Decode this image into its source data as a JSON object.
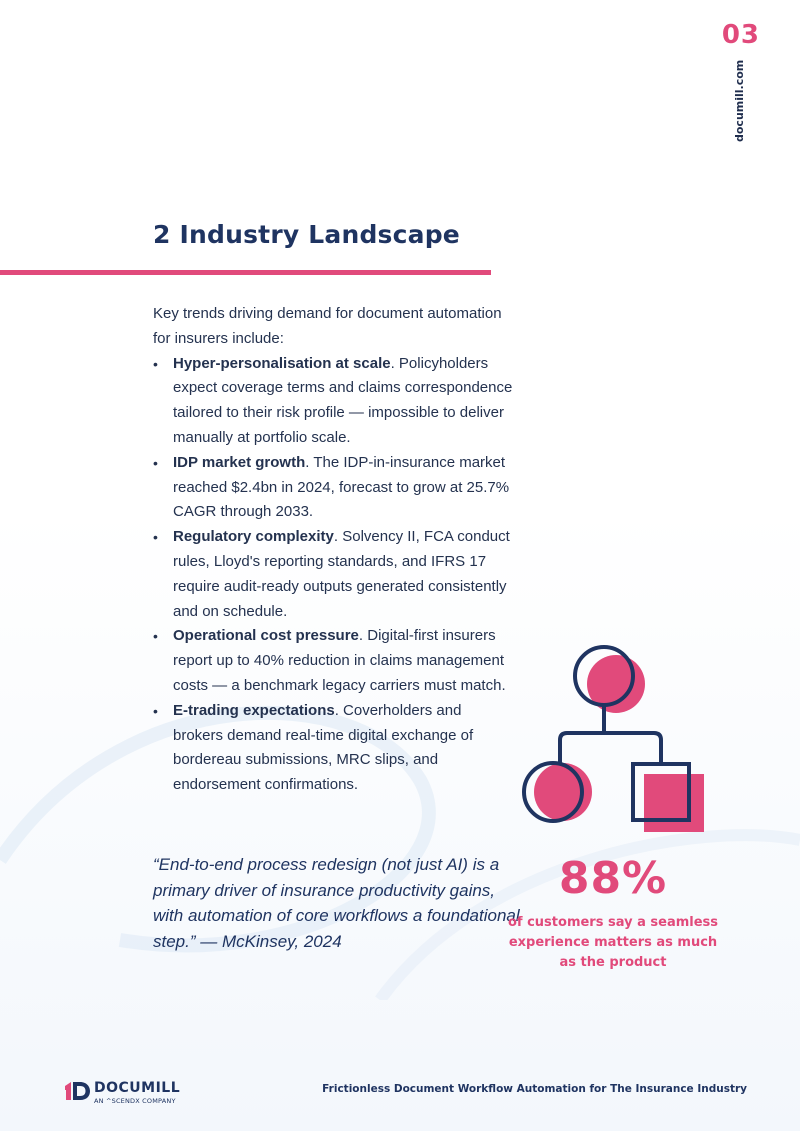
{
  "header": {
    "page_number": "03",
    "site_url": "documill.com"
  },
  "section": {
    "title": "2 Industry Landscape",
    "intro": "Key trends driving demand for document automation for insurers include:",
    "bullets": [
      {
        "heading": "Hyper-personalisation at scale",
        "text": ". Policyholders expect coverage terms and claims correspondence tailored to their risk profile — impossible to deliver manually at portfolio scale."
      },
      {
        "heading": "IDP market growth",
        "text": ". The IDP-in-insurance market reached $2.4bn in 2024, forecast to grow at 25.7% CAGR through 2033."
      },
      {
        "heading": "Regulatory complexity",
        "text": ". Solvency II, FCA conduct rules, Lloyd's reporting standards, and IFRS 17 require audit-ready outputs generated consistently and on schedule."
      },
      {
        "heading": "Operational cost pressure",
        "text": ". Digital-first insurers report up to 40% reduction in claims management costs — a benchmark legacy carriers must match."
      },
      {
        "heading": "E-trading expectations",
        "text": ". Coverholders and brokers demand real-time digital exchange of bordereau submissions, MRC slips, and endorsement confirmations."
      }
    ],
    "bullet_symbol": "•",
    "quote": "“End-to-end process redesign (not just AI) is a primary driver of insurance productivity gains, with automation of core workflows a foundational step.” — McKinsey, 2024"
  },
  "stat": {
    "value": "88%",
    "caption": "of customers say a seamless experience matters as much as the product",
    "graphic_icon": "org-hierarchy-icon"
  },
  "footer": {
    "logo_word": "DOCUMILL",
    "logo_sub": "AN ^SCENDX COMPANY",
    "document_title": "Frictionless Document Workflow Automation for The Insurance Industry"
  },
  "colors": {
    "accent": "#e14a7b",
    "navy": "#1f3461",
    "text": "#24324f"
  }
}
